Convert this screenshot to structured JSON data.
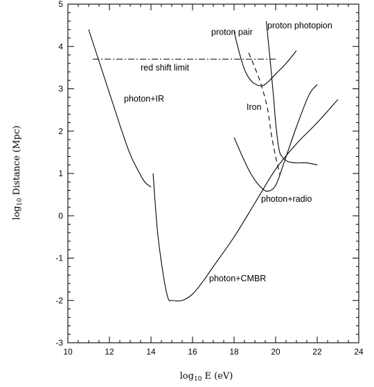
{
  "chart_data": {
    "type": "line",
    "title": "",
    "xlabel": "log",
    "xlabel_sub": "10",
    "xlabel_tail": " E (eV)",
    "ylabel": "log",
    "ylabel_sub": "10",
    "ylabel_tail": " Distance (Mpc)",
    "xlim": [
      10,
      24
    ],
    "ylim": [
      -3,
      5
    ],
    "x_ticks": [
      "10",
      "12",
      "14",
      "16",
      "18",
      "20",
      "22",
      "24"
    ],
    "y_ticks": [
      "-3",
      "-2",
      "-1",
      "0",
      "1",
      "2",
      "3",
      "4",
      "5"
    ],
    "grid": false,
    "series": [
      {
        "name": "photon+IR",
        "style": "solid",
        "points": [
          [
            11.0,
            4.4
          ],
          [
            11.4,
            3.8
          ],
          [
            11.8,
            3.2
          ],
          [
            12.2,
            2.6
          ],
          [
            12.6,
            2.0
          ],
          [
            13.0,
            1.45
          ],
          [
            13.4,
            1.05
          ],
          [
            13.7,
            0.8
          ],
          [
            14.0,
            0.68
          ]
        ]
      },
      {
        "name": "photon+CMBR",
        "style": "solid",
        "points": [
          [
            14.1,
            1.0
          ],
          [
            14.3,
            -0.3
          ],
          [
            14.5,
            -1.1
          ],
          [
            14.7,
            -1.7
          ],
          [
            14.85,
            -1.98
          ],
          [
            15.0,
            -2.0
          ],
          [
            15.5,
            -2.0
          ],
          [
            16.0,
            -1.85
          ],
          [
            16.5,
            -1.55
          ],
          [
            17.0,
            -1.2
          ],
          [
            18.0,
            -0.5
          ],
          [
            19.0,
            0.3
          ],
          [
            20.0,
            1.1
          ],
          [
            21.0,
            1.7
          ],
          [
            22.0,
            2.2
          ],
          [
            23.0,
            2.75
          ]
        ]
      },
      {
        "name": "photon+radio",
        "style": "solid",
        "points": [
          [
            18.0,
            1.85
          ],
          [
            18.4,
            1.4
          ],
          [
            18.8,
            1.0
          ],
          [
            19.2,
            0.72
          ],
          [
            19.6,
            0.58
          ],
          [
            20.0,
            0.72
          ],
          [
            20.4,
            1.25
          ],
          [
            21.0,
            2.1
          ],
          [
            21.6,
            2.85
          ],
          [
            22.0,
            3.1
          ]
        ]
      },
      {
        "name": "proton pair",
        "style": "solid",
        "points": [
          [
            18.0,
            4.35
          ],
          [
            18.2,
            3.95
          ],
          [
            18.4,
            3.6
          ],
          [
            18.6,
            3.35
          ],
          [
            18.9,
            3.15
          ],
          [
            19.3,
            3.07
          ],
          [
            19.6,
            3.15
          ],
          [
            20.0,
            3.35
          ],
          [
            20.5,
            3.6
          ],
          [
            21.0,
            3.9
          ]
        ]
      },
      {
        "name": "proton photopion",
        "style": "solid",
        "points": [
          [
            19.55,
            4.6
          ],
          [
            19.75,
            3.6
          ],
          [
            19.9,
            2.8
          ],
          [
            20.0,
            2.2
          ],
          [
            20.15,
            1.6
          ],
          [
            20.3,
            1.4
          ],
          [
            20.6,
            1.28
          ],
          [
            21.0,
            1.25
          ],
          [
            21.5,
            1.25
          ],
          [
            22.0,
            1.2
          ]
        ]
      },
      {
        "name": "Iron",
        "style": "dashed",
        "points": [
          [
            18.7,
            3.85
          ],
          [
            19.0,
            3.5
          ],
          [
            19.3,
            3.1
          ],
          [
            19.6,
            2.55
          ],
          [
            19.8,
            1.9
          ],
          [
            20.0,
            1.4
          ],
          [
            20.2,
            0.98
          ]
        ]
      },
      {
        "name": "red shift limit",
        "style": "dashdot",
        "points": [
          [
            11.2,
            3.7
          ],
          [
            20.0,
            3.7
          ]
        ]
      }
    ],
    "annotations": [
      {
        "text": "photon+IR",
        "x": 12.7,
        "y": 2.7
      },
      {
        "text": "photon+CMBR",
        "x": 16.8,
        "y": -1.55
      },
      {
        "text": "photon+radio",
        "x": 19.3,
        "y": 0.33
      },
      {
        "text": "proton pair",
        "x": 16.9,
        "y": 4.27
      },
      {
        "text": "proton photopion",
        "x": 19.6,
        "y": 4.43
      },
      {
        "text": "Iron",
        "x": 18.6,
        "y": 2.5
      },
      {
        "text": "red shift limit",
        "x": 13.5,
        "y": 3.43
      }
    ]
  }
}
